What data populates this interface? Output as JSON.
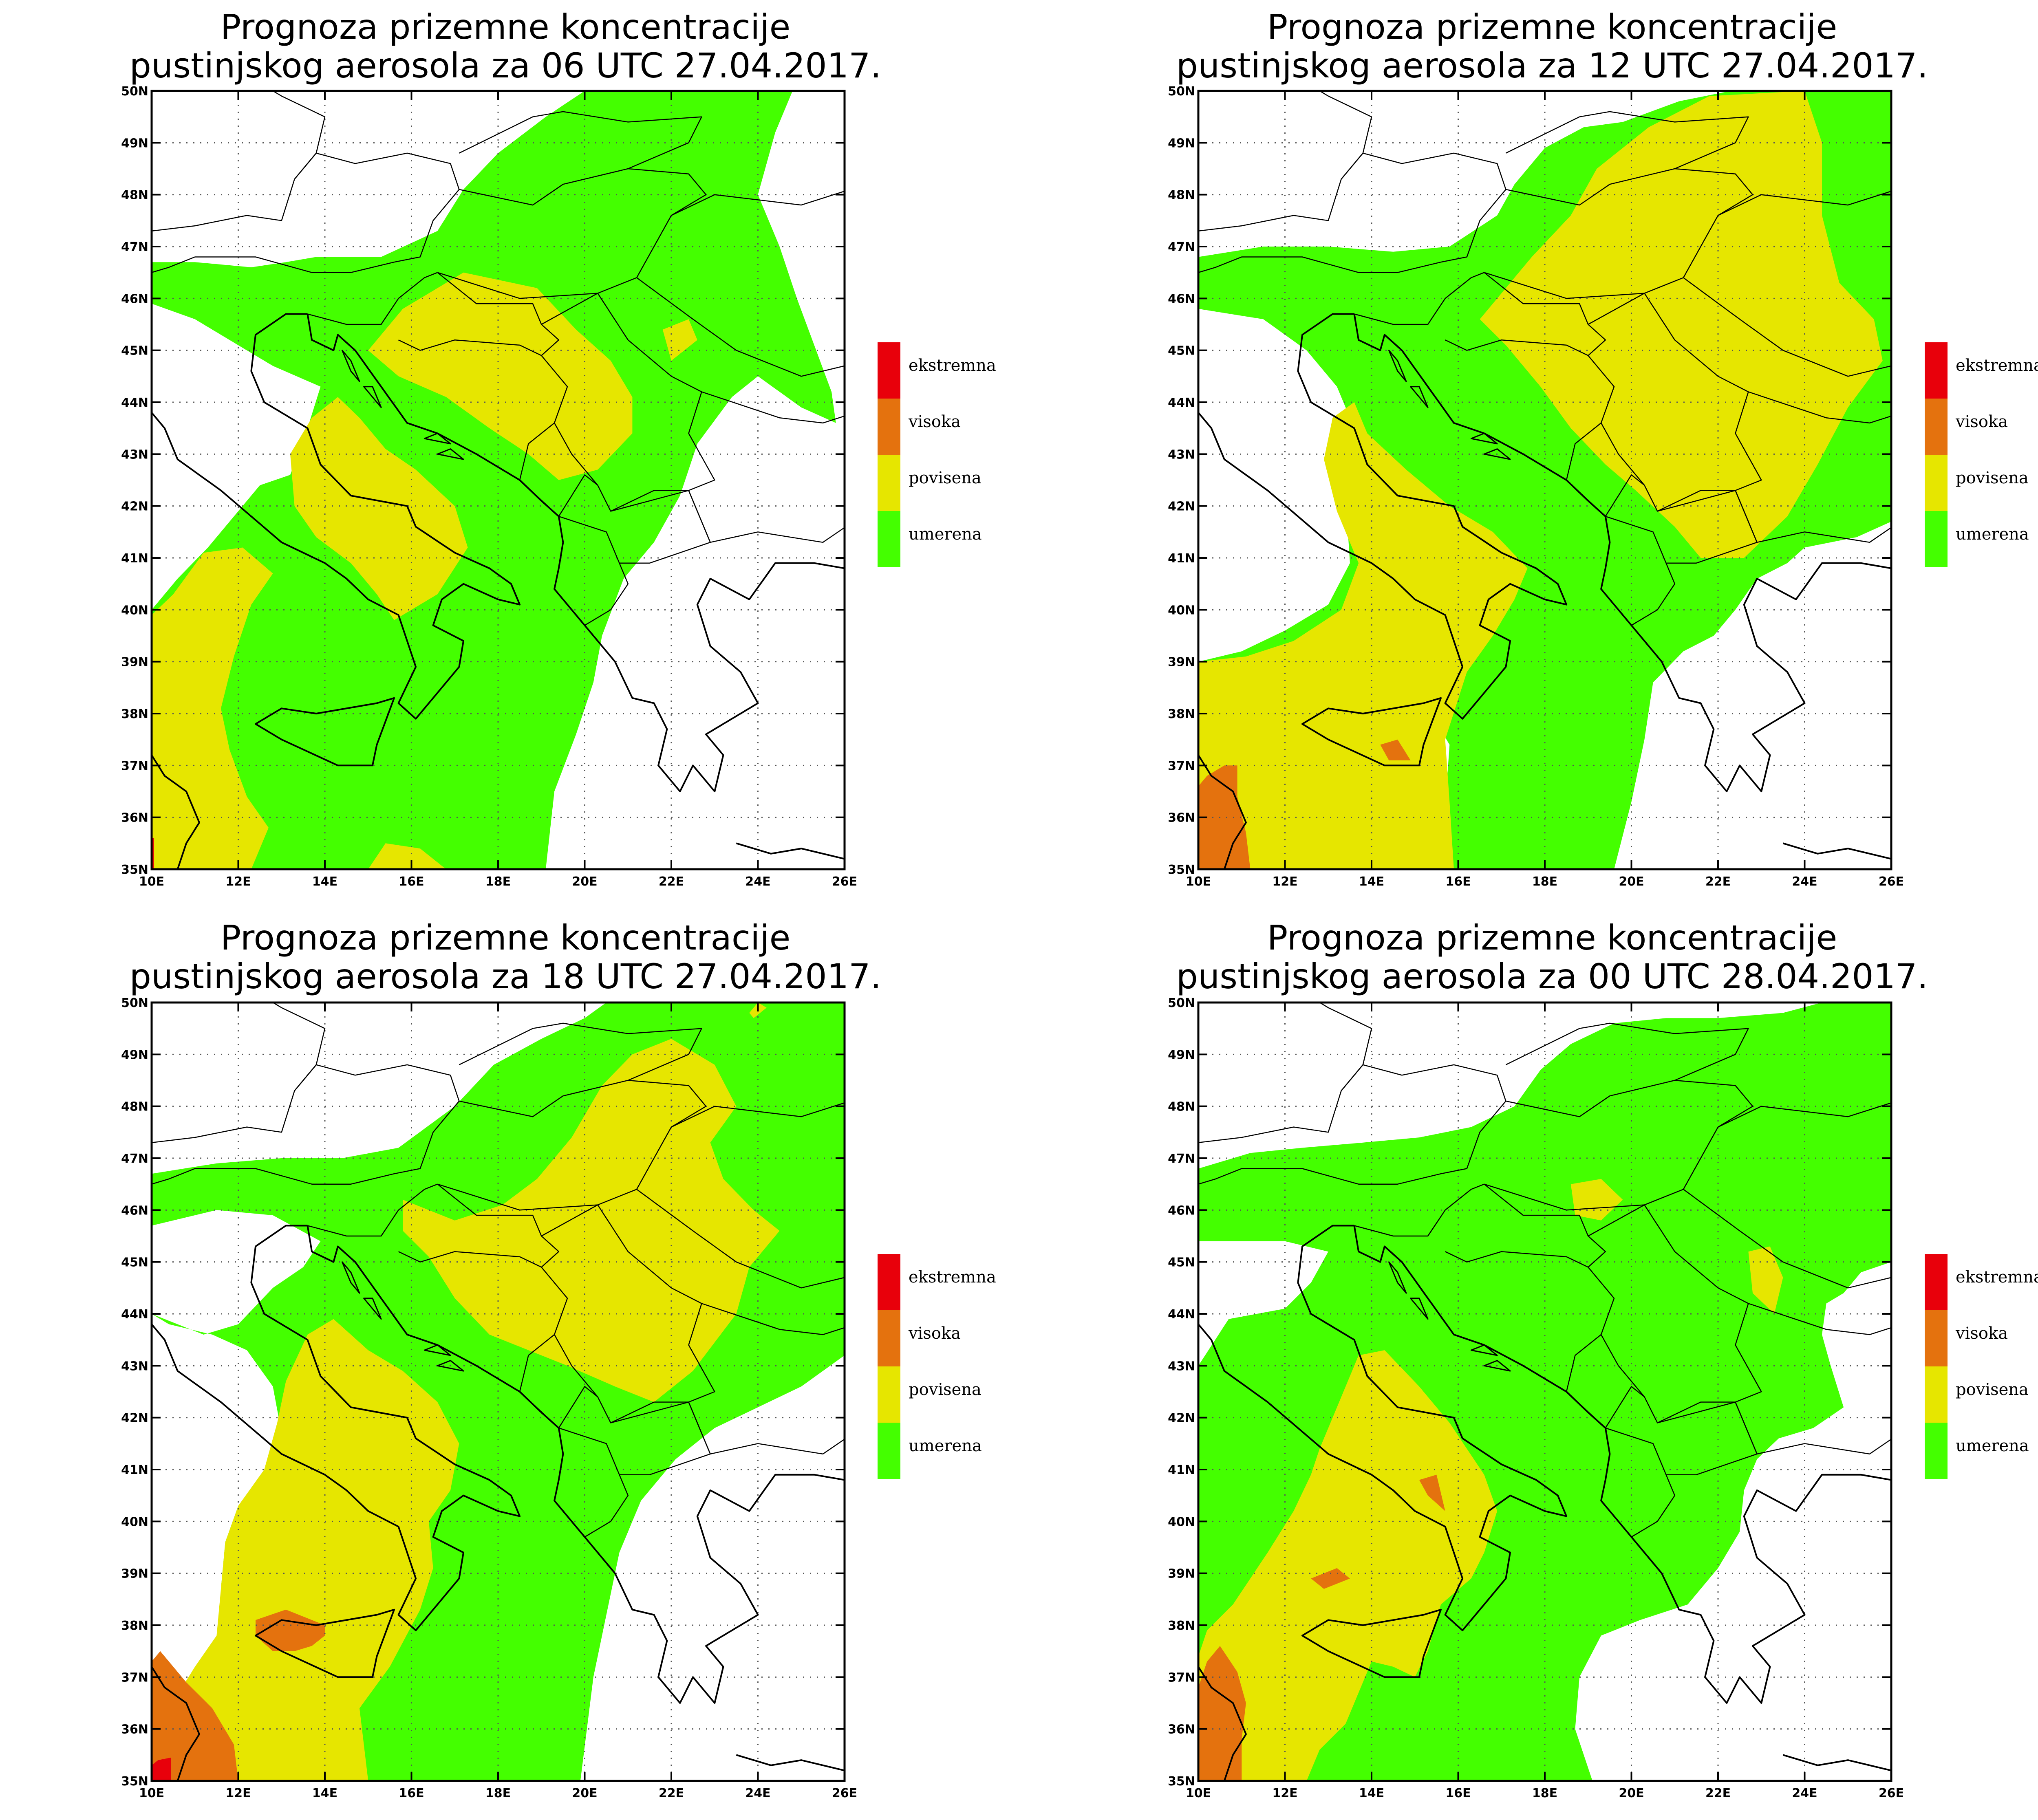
{
  "colors": {
    "ekstremna": "#e8000b",
    "visoka": "#e4720e",
    "povisena": "#e6e600",
    "umerena": "#44ff00",
    "background": "#ffffff",
    "border": "#000000"
  },
  "legend": [
    {
      "key": "ekstremna",
      "label": "ekstremna"
    },
    {
      "key": "visoka",
      "label": "visoka"
    },
    {
      "key": "povisena",
      "label": "povisena"
    },
    {
      "key": "umerena",
      "label": "umerena"
    }
  ],
  "axes": {
    "lon_labels": [
      "10E",
      "12E",
      "14E",
      "16E",
      "18E",
      "20E",
      "22E",
      "24E",
      "26E"
    ],
    "lat_labels": [
      "35N",
      "36N",
      "37N",
      "38N",
      "39N",
      "40N",
      "41N",
      "42N",
      "43N",
      "44N",
      "45N",
      "46N",
      "47N",
      "48N",
      "49N",
      "50N"
    ]
  },
  "maps": [
    {
      "id": "map-06utc",
      "title_line1": "Prognoza prizemne koncentracije",
      "title_line2": "pustinjskog aerosola za 06 UTC 27.04.2017."
    },
    {
      "id": "map-12utc",
      "title_line1": "Prognoza prizemne koncentracije",
      "title_line2": "pustinjskog aerosola za 12 UTC 27.04.2017."
    },
    {
      "id": "map-18utc",
      "title_line1": "Prognoza prizemne koncentracije",
      "title_line2": "pustinjskog aerosola za 18 UTC 27.04.2017."
    },
    {
      "id": "map-00utc",
      "title_line1": "Prognoza prizemne koncentracije",
      "title_line2": "pustinjskog aerosola za 00 UTC 28.04.2017."
    }
  ]
}
